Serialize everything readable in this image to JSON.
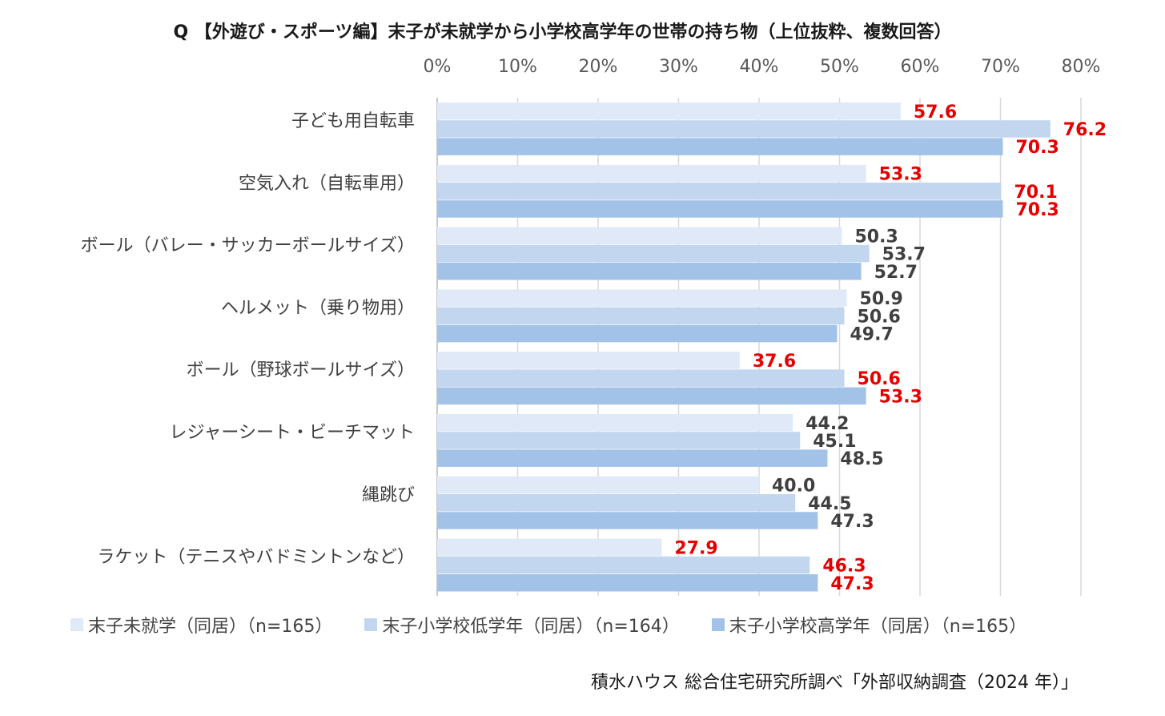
{
  "title": "Q 【外遊び・スポーツ編】末子が未就学から小学校高学年の世帯の持ち物（上位抜粋、複数回答）",
  "source": "積水ハウス 総合住宅研究所調べ「外部収納調査（2024 年）」",
  "colors": {
    "series": [
      "#dfe9f8",
      "#c2d6ef",
      "#a3c2e8"
    ],
    "highlight": "#e60000",
    "normal_label": "#404040",
    "grid": "#d9d9d9",
    "category_text": "#404040",
    "tick_text": "#595959"
  },
  "chart_data": {
    "type": "bar",
    "orientation": "horizontal",
    "xlim": [
      0,
      80
    ],
    "ticks": [
      "0%",
      "10%",
      "20%",
      "30%",
      "40%",
      "50%",
      "60%",
      "70%",
      "80%"
    ],
    "tick_values": [
      0,
      10,
      20,
      30,
      40,
      50,
      60,
      70,
      80
    ],
    "grid": true,
    "legend_position": "bottom",
    "categories": [
      "子ども用自転車",
      "空気入れ（自転車用）",
      "ボール（バレー・サッカーボールサイズ）",
      "ヘルメット（乗り物用）",
      "ボール（野球ボールサイズ）",
      "レジャーシート・ビーチマット",
      "縄跳び",
      "ラケット（テニスやバドミントンなど）"
    ],
    "series": [
      {
        "name": "末子未就学（同居）（n=165）",
        "values": [
          57.6,
          53.3,
          50.3,
          50.9,
          37.6,
          44.2,
          40.0,
          27.9
        ],
        "labels": [
          "57.6",
          "53.3",
          "50.3",
          "50.9",
          "37.6",
          "44.2",
          "40.0",
          "27.9"
        ],
        "highlight": [
          true,
          true,
          false,
          false,
          true,
          false,
          false,
          true
        ]
      },
      {
        "name": "末子小学校低学年（同居）（n=164）",
        "values": [
          76.2,
          70.1,
          53.7,
          50.6,
          50.6,
          45.1,
          44.5,
          46.3
        ],
        "labels": [
          "76.2",
          "70.1",
          "53.7",
          "50.6",
          "50.6",
          "45.1",
          "44.5",
          "46.3"
        ],
        "highlight": [
          true,
          true,
          false,
          false,
          true,
          false,
          false,
          true
        ]
      },
      {
        "name": "末子小学校高学年（同居）（n=165）",
        "values": [
          70.3,
          70.3,
          52.7,
          49.7,
          53.3,
          48.5,
          47.3,
          47.3
        ],
        "labels": [
          "70.3",
          "70.3",
          "52.7",
          "49.7",
          "53.3",
          "48.5",
          "47.3",
          "47.3"
        ],
        "highlight": [
          true,
          true,
          false,
          false,
          true,
          false,
          false,
          true
        ]
      }
    ]
  }
}
